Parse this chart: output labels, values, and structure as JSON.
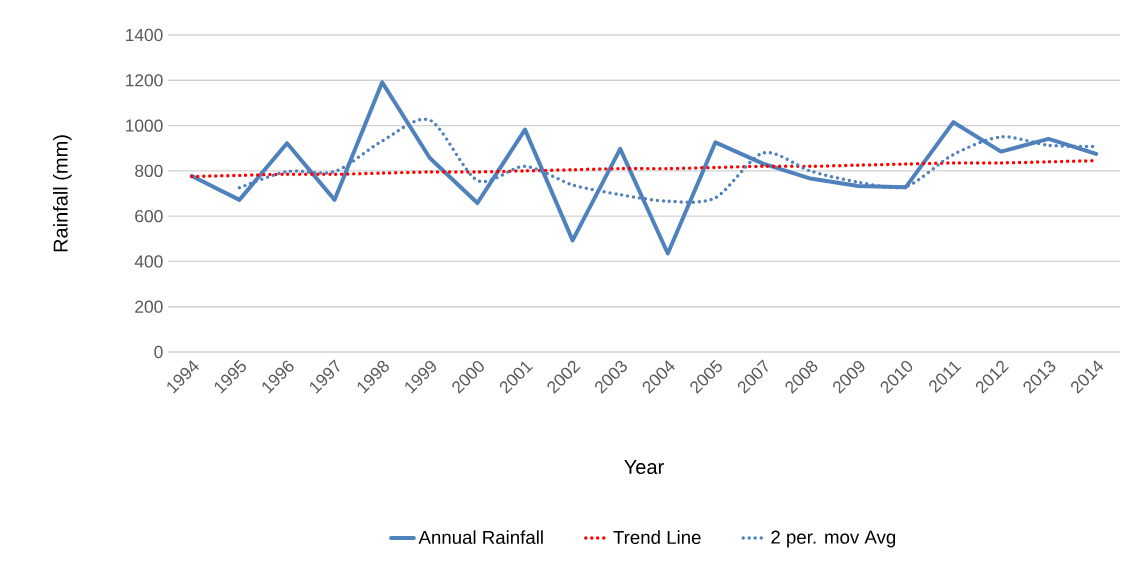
{
  "chart_data": {
    "type": "line",
    "xlabel": "Year",
    "ylabel": "Rainfall (mm)",
    "categories": [
      "1994",
      "1995",
      "1996",
      "1997",
      "1998",
      "1999",
      "2000",
      "2001",
      "2002",
      "2003",
      "2004",
      "2005",
      "2007",
      "2008",
      "2009",
      "2010",
      "2011",
      "2012",
      "2013",
      "2014"
    ],
    "series": [
      {
        "name": "Annual Rainfall",
        "color": "#4f81bd",
        "line_style": "solid",
        "values": [
          777,
          672,
          922,
          672,
          1191,
          857,
          658,
          982,
          493,
          897,
          435,
          926,
          832,
          766,
          733,
          728,
          1015,
          885,
          941,
          875
        ]
      },
      {
        "name": "Trend Line",
        "color": "#ff0000",
        "line_style": "dotted",
        "values": [
          775,
          780,
          785,
          785,
          790,
          795,
          795,
          800,
          805,
          810,
          810,
          815,
          820,
          820,
          825,
          830,
          835,
          835,
          840,
          845
        ]
      },
      {
        "name": "2 per. mov Avg",
        "color": "#4f81bd",
        "line_style": "dotted",
        "values": [
          null,
          725,
          797,
          797,
          932,
          1024,
          758,
          820,
          738,
          695,
          666,
          681,
          879,
          799,
          750,
          731,
          872,
          950,
          913,
          908
        ]
      }
    ],
    "ylim": [
      0,
      1400
    ],
    "yticks": [
      0,
      200,
      400,
      600,
      800,
      1000,
      1200,
      1400
    ],
    "grid": "y",
    "legend": "bottom",
    "marker": "none"
  }
}
